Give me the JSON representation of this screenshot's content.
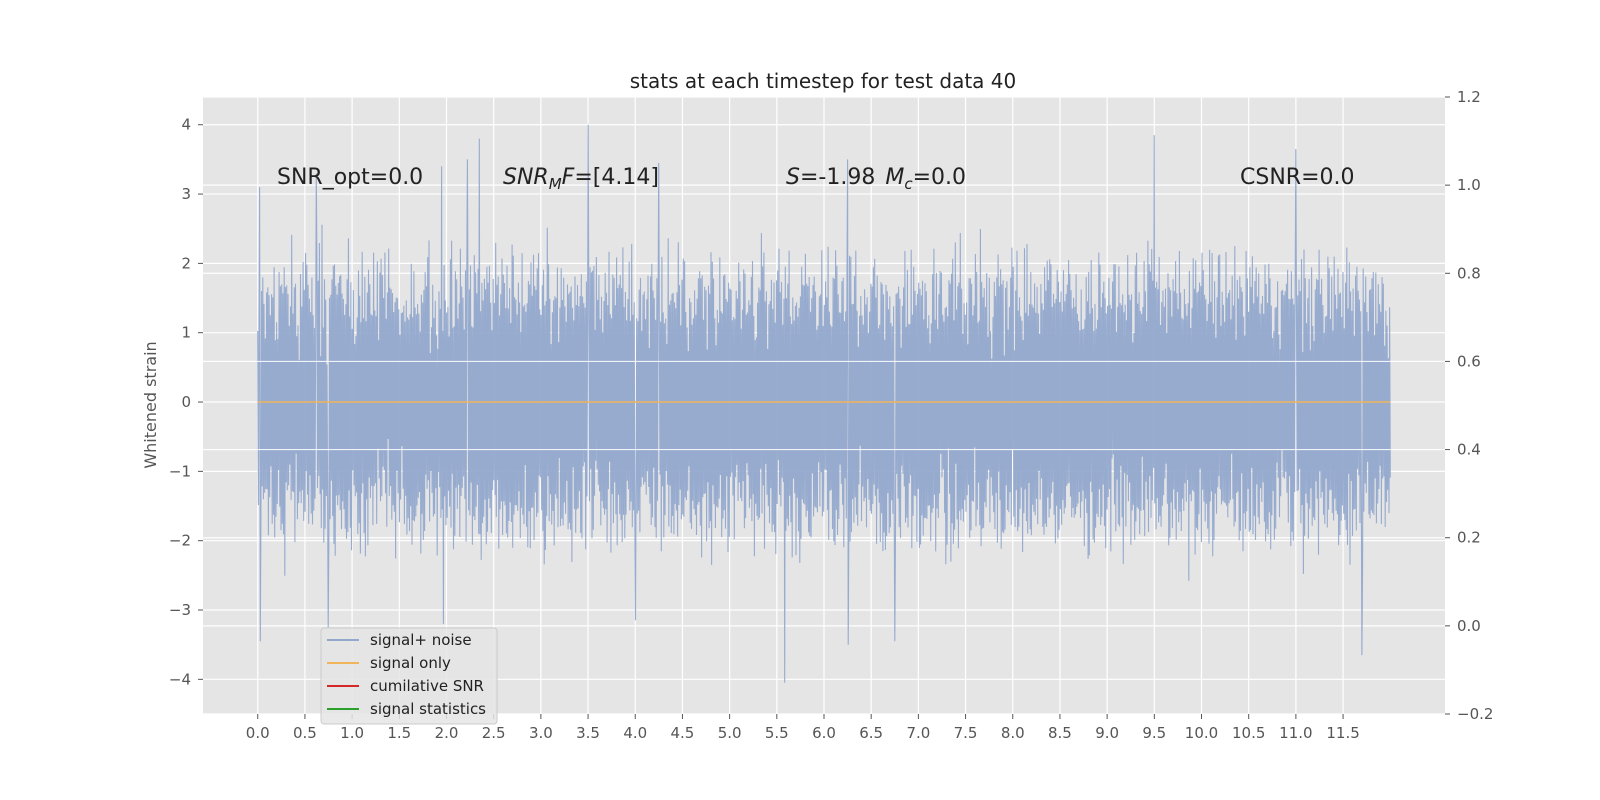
{
  "chart_data": {
    "type": "line",
    "title": "stats at each timestep for test data 40",
    "ylabel": "Whitened strain",
    "xlabel": "",
    "xlim": [
      -0.58,
      12.58
    ],
    "ylim": [
      -4.5,
      4.4
    ],
    "y2lim": [
      -0.2,
      1.2
    ],
    "xticks": [
      0.0,
      0.5,
      1.0,
      1.5,
      2.0,
      2.5,
      3.0,
      3.5,
      4.0,
      4.5,
      5.0,
      5.5,
      6.0,
      6.5,
      7.0,
      7.5,
      8.0,
      8.5,
      9.0,
      9.5,
      10.0,
      10.5,
      11.0,
      11.5
    ],
    "xtick_labels": [
      "0.0",
      "0.5",
      "1.0",
      "1.5",
      "2.0",
      "2.5",
      "3.0",
      "3.5",
      "4.0",
      "4.5",
      "5.0",
      "5.5",
      "6.0",
      "6.5",
      "7.0",
      "7.5",
      "8.0",
      "8.5",
      "9.0",
      "9.5",
      "10.0",
      "10.5",
      "11.0",
      "11.5"
    ],
    "yticks": [
      -4,
      -3,
      -2,
      -1,
      0,
      1,
      2,
      3,
      4
    ],
    "ytick_labels": [
      "−4",
      "−3",
      "−2",
      "−1",
      "0",
      "1",
      "2",
      "3",
      "4"
    ],
    "y2ticks": [
      -0.2,
      0.0,
      0.2,
      0.4,
      0.6,
      0.8,
      1.0,
      1.2
    ],
    "y2tick_labels": [
      "−0.2",
      "0.0",
      "0.2",
      "0.4",
      "0.6",
      "0.8",
      "1.0",
      "1.2"
    ],
    "grid": true,
    "series": [
      {
        "name": "signal+ noise",
        "color": "#92a8cd",
        "x_range": [
          0.0,
          12.0
        ],
        "n_samples": 1800,
        "envelope": {
          "typical_abs": 2.0,
          "min": -4.05,
          "max": 4.0
        },
        "peaks": [
          {
            "x": 0.02,
            "y": 3.1
          },
          {
            "x": 0.03,
            "y": -3.45
          },
          {
            "x": 0.62,
            "y": 3.3
          },
          {
            "x": 0.75,
            "y": -3.25
          },
          {
            "x": 1.95,
            "y": 3.4
          },
          {
            "x": 1.97,
            "y": -3.2
          },
          {
            "x": 2.22,
            "y": 3.5
          },
          {
            "x": 2.35,
            "y": 3.8
          },
          {
            "x": 3.5,
            "y": 4.0
          },
          {
            "x": 4.0,
            "y": -3.15
          },
          {
            "x": 4.25,
            "y": 3.45
          },
          {
            "x": 5.58,
            "y": -4.05
          },
          {
            "x": 6.25,
            "y": 3.5
          },
          {
            "x": 6.25,
            "y": -3.5
          },
          {
            "x": 6.75,
            "y": -3.45
          },
          {
            "x": 9.5,
            "y": 3.85
          },
          {
            "x": 11.0,
            "y": 3.65
          },
          {
            "x": 11.7,
            "y": -3.65
          }
        ]
      },
      {
        "name": "signal only",
        "color": "#f0b45a",
        "x": [
          0.0,
          12.0
        ],
        "y": [
          0.0,
          0.0
        ]
      },
      {
        "name": "cumilative SNR",
        "color": "#d62728",
        "x": [],
        "y": []
      },
      {
        "name": "signal statistics",
        "color": "#2ca02c",
        "x": [],
        "y": []
      }
    ],
    "annotations": [
      {
        "text": "SNR_opt=0.0",
        "x": 0.2,
        "y": 3.15
      },
      {
        "text": "SNR_MF=[4.14]",
        "x": 2.6,
        "y": 3.15
      },
      {
        "text": "S=-1.98  M_c=0.0",
        "x": 5.6,
        "y": 3.15
      },
      {
        "text": "CSNR=0.0",
        "x": 10.4,
        "y": 3.15
      }
    ],
    "legend_location": "lower-left"
  },
  "annotations_display": {
    "snr_opt": "SNR_opt=0.0",
    "snr_mf_prefix": "SNR",
    "snr_mf_sub": "M",
    "snr_mf_mid": "F",
    "snr_mf_suffix": "=[4.14]",
    "s_prefix": "S",
    "s_value": "=-1.98",
    "mc_prefix": "M",
    "mc_sub": "c",
    "mc_value": "=0.0",
    "csnr": "CSNR=0.0"
  },
  "legend": [
    {
      "label": "signal+ noise",
      "color": "#92a8cd"
    },
    {
      "label": "signal only",
      "color": "#f0b45a"
    },
    {
      "label": "cumilative SNR",
      "color": "#d62728"
    },
    {
      "label": "signal statistics",
      "color": "#2ca02c"
    }
  ]
}
